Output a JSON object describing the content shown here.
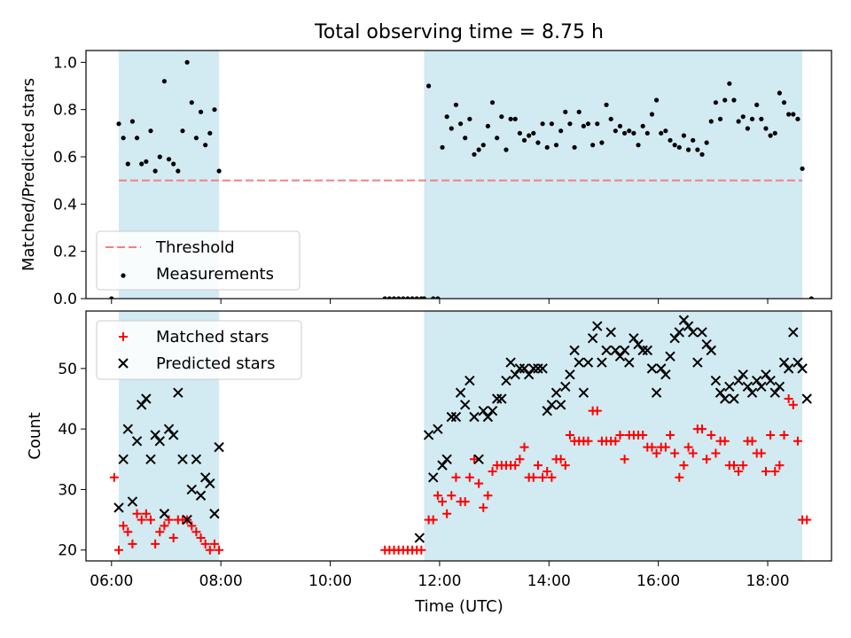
{
  "figure": {
    "title": "Total observing time = 8.75 h",
    "xlabel": "Time (UTC)"
  },
  "colors": {
    "shade": "#add8e6",
    "threshold": "#f08080",
    "measurement": "#000000",
    "matched": "#ff0000",
    "predicted": "#000000"
  },
  "chart_data": [
    {
      "type": "scatter",
      "ylabel": "Matched/Predicted stars",
      "xlim": [
        "05:32",
        "19:10"
      ],
      "ylim": [
        0,
        1.05
      ],
      "x_ticks": [
        "06:00",
        "08:00",
        "10:00",
        "12:00",
        "14:00",
        "16:00",
        "18:00"
      ],
      "y_ticks": [
        "0.0",
        "0.2",
        "0.4",
        "0.6",
        "0.8",
        "1.0"
      ],
      "shaded_intervals": [
        [
          "06:08",
          "07:58"
        ],
        [
          "11:43",
          "18:38"
        ]
      ],
      "threshold": {
        "name": "Threshold",
        "y": 0.5,
        "x_range": [
          "06:08",
          "18:38"
        ]
      },
      "legend_placement": "lower-left",
      "legend": [
        "Threshold",
        "Measurements"
      ],
      "series": [
        {
          "name": "Measurements",
          "x": [
            "06:00",
            "06:08",
            "06:13",
            "06:18",
            "06:23",
            "06:28",
            "06:33",
            "06:38",
            "06:43",
            "06:48",
            "06:53",
            "06:58",
            "07:03",
            "07:08",
            "07:13",
            "07:18",
            "07:23",
            "07:28",
            "07:33",
            "07:38",
            "07:43",
            "07:48",
            "07:53",
            "07:58",
            "11:00",
            "11:05",
            "11:10",
            "11:15",
            "11:20",
            "11:25",
            "11:30",
            "11:35",
            "11:40",
            "11:43",
            "11:48",
            "11:53",
            "11:58",
            "12:03",
            "12:08",
            "12:13",
            "12:18",
            "12:23",
            "12:28",
            "12:33",
            "12:38",
            "12:43",
            "12:48",
            "12:53",
            "12:58",
            "13:03",
            "13:08",
            "13:13",
            "13:18",
            "13:23",
            "13:28",
            "13:33",
            "13:38",
            "13:43",
            "13:48",
            "13:53",
            "13:58",
            "14:03",
            "14:08",
            "14:13",
            "14:18",
            "14:23",
            "14:28",
            "14:33",
            "14:38",
            "14:43",
            "14:48",
            "14:53",
            "14:58",
            "15:03",
            "15:08",
            "15:13",
            "15:18",
            "15:23",
            "15:28",
            "15:33",
            "15:38",
            "15:43",
            "15:48",
            "15:53",
            "15:58",
            "16:03",
            "16:08",
            "16:13",
            "16:18",
            "16:23",
            "16:28",
            "16:33",
            "16:38",
            "16:43",
            "16:48",
            "16:53",
            "16:58",
            "17:03",
            "17:08",
            "17:13",
            "17:18",
            "17:23",
            "17:28",
            "17:33",
            "17:38",
            "17:43",
            "17:48",
            "17:53",
            "17:58",
            "18:03",
            "18:08",
            "18:13",
            "18:18",
            "18:23",
            "18:28",
            "18:33",
            "18:38",
            "18:48"
          ],
          "y": [
            0.0,
            0.74,
            0.68,
            0.57,
            0.75,
            0.68,
            0.57,
            0.58,
            0.71,
            0.54,
            0.6,
            0.92,
            0.59,
            0.57,
            0.54,
            0.71,
            1.0,
            0.83,
            0.68,
            0.79,
            0.65,
            0.7,
            0.8,
            0.54,
            0.0,
            0.0,
            0.0,
            0.0,
            0.0,
            0.0,
            0.0,
            0.0,
            0.0,
            0.0,
            0.9,
            0.0,
            0.0,
            0.64,
            0.77,
            0.72,
            0.82,
            0.74,
            0.68,
            0.76,
            0.61,
            0.63,
            0.65,
            0.73,
            0.83,
            0.68,
            0.77,
            0.63,
            0.76,
            0.76,
            0.7,
            0.67,
            0.69,
            0.7,
            0.66,
            0.74,
            0.64,
            0.74,
            0.65,
            0.71,
            0.79,
            0.74,
            0.64,
            0.79,
            0.73,
            0.74,
            0.65,
            0.74,
            0.66,
            0.82,
            0.76,
            0.71,
            0.73,
            0.7,
            0.71,
            0.7,
            0.65,
            0.73,
            0.7,
            0.78,
            0.84,
            0.7,
            0.71,
            0.67,
            0.65,
            0.64,
            0.69,
            0.63,
            0.67,
            0.63,
            0.61,
            0.66,
            0.75,
            0.83,
            0.76,
            0.84,
            0.91,
            0.84,
            0.75,
            0.77,
            0.72,
            0.76,
            0.82,
            0.76,
            0.72,
            0.69,
            0.7,
            0.87,
            0.83,
            0.78,
            0.78,
            0.76,
            0.55,
            0.0
          ]
        }
      ]
    },
    {
      "type": "scatter",
      "ylabel": "Count",
      "xlim": [
        "05:32",
        "19:10"
      ],
      "ylim": [
        18.2,
        59.5
      ],
      "x_ticks": [
        "06:00",
        "08:00",
        "10:00",
        "12:00",
        "14:00",
        "16:00",
        "18:00"
      ],
      "y_ticks": [
        "20",
        "30",
        "40",
        "50"
      ],
      "shaded_intervals": [
        [
          "06:08",
          "07:58"
        ],
        [
          "11:43",
          "18:38"
        ]
      ],
      "legend_placement": "upper-left",
      "legend": [
        "Matched stars",
        "Predicted stars"
      ],
      "series": [
        {
          "name": "Matched stars",
          "x": [
            "06:03",
            "06:08",
            "06:13",
            "06:18",
            "06:23",
            "06:28",
            "06:33",
            "06:38",
            "06:43",
            "06:48",
            "06:53",
            "06:58",
            "07:03",
            "07:08",
            "07:13",
            "07:18",
            "07:23",
            "07:28",
            "07:33",
            "07:38",
            "07:43",
            "07:48",
            "07:53",
            "07:58",
            "11:00",
            "11:05",
            "11:10",
            "11:15",
            "11:20",
            "11:25",
            "11:30",
            "11:35",
            "11:40",
            "11:48",
            "11:53",
            "11:58",
            "12:03",
            "12:08",
            "12:13",
            "12:18",
            "12:23",
            "12:28",
            "12:33",
            "12:38",
            "12:43",
            "12:48",
            "12:53",
            "12:58",
            "13:03",
            "13:08",
            "13:13",
            "13:18",
            "13:23",
            "13:28",
            "13:33",
            "13:38",
            "13:43",
            "13:48",
            "13:53",
            "13:58",
            "14:03",
            "14:08",
            "14:13",
            "14:18",
            "14:23",
            "14:28",
            "14:33",
            "14:38",
            "14:43",
            "14:48",
            "14:53",
            "14:58",
            "15:03",
            "15:08",
            "15:13",
            "15:18",
            "15:23",
            "15:28",
            "15:33",
            "15:38",
            "15:43",
            "15:48",
            "15:53",
            "15:58",
            "16:03",
            "16:08",
            "16:13",
            "16:18",
            "16:23",
            "16:28",
            "16:33",
            "16:38",
            "16:43",
            "16:48",
            "16:53",
            "16:58",
            "17:03",
            "17:08",
            "17:13",
            "17:18",
            "17:23",
            "17:28",
            "17:33",
            "17:38",
            "17:43",
            "17:48",
            "17:53",
            "17:58",
            "18:03",
            "18:08",
            "18:13",
            "18:18",
            "18:23",
            "18:28",
            "18:33",
            "18:38",
            "18:43"
          ],
          "y": [
            32,
            20,
            24,
            23,
            21,
            26,
            25,
            26,
            25,
            21,
            23,
            24,
            25,
            22,
            25,
            25,
            25,
            24,
            23,
            22,
            21,
            20,
            21,
            20,
            20,
            20,
            20,
            20,
            20,
            20,
            20,
            20,
            20,
            25,
            25,
            29,
            28,
            26,
            29,
            32,
            28,
            28,
            32,
            35,
            31,
            27,
            29,
            33,
            34,
            34,
            34,
            34,
            34,
            35,
            37,
            32,
            32,
            34,
            32,
            33,
            32,
            35,
            35,
            34,
            39,
            38,
            38,
            38,
            38,
            43,
            43,
            38,
            38,
            38,
            38,
            39,
            35,
            39,
            39,
            39,
            39,
            37,
            37,
            36,
            37,
            37,
            39,
            36,
            32,
            34,
            37,
            36,
            40,
            40,
            35,
            39,
            36,
            38,
            38,
            34,
            34,
            33,
            34,
            38,
            38,
            36,
            36,
            33,
            39,
            33,
            34,
            39,
            45,
            44,
            38,
            25,
            25
          ]
        },
        {
          "name": "Predicted stars",
          "x": [
            "06:08",
            "06:13",
            "06:18",
            "06:23",
            "06:28",
            "06:33",
            "06:38",
            "06:43",
            "06:48",
            "06:53",
            "06:58",
            "07:03",
            "07:08",
            "07:13",
            "07:18",
            "07:23",
            "07:28",
            "07:33",
            "07:38",
            "07:43",
            "07:48",
            "07:53",
            "07:58",
            "11:38",
            "11:48",
            "11:53",
            "11:58",
            "12:03",
            "12:08",
            "12:13",
            "12:18",
            "12:23",
            "12:28",
            "12:33",
            "12:38",
            "12:43",
            "12:48",
            "12:53",
            "12:58",
            "13:03",
            "13:08",
            "13:13",
            "13:18",
            "13:23",
            "13:28",
            "13:33",
            "13:38",
            "13:43",
            "13:48",
            "13:53",
            "13:58",
            "14:03",
            "14:08",
            "14:13",
            "14:18",
            "14:23",
            "14:28",
            "14:33",
            "14:38",
            "14:43",
            "14:48",
            "14:53",
            "14:58",
            "15:03",
            "15:08",
            "15:13",
            "15:18",
            "15:23",
            "15:28",
            "15:33",
            "15:38",
            "15:43",
            "15:48",
            "15:53",
            "15:58",
            "16:03",
            "16:08",
            "16:13",
            "16:18",
            "16:23",
            "16:28",
            "16:33",
            "16:38",
            "16:43",
            "16:48",
            "16:53",
            "16:58",
            "17:03",
            "17:08",
            "17:13",
            "17:18",
            "17:23",
            "17:28",
            "17:33",
            "17:38",
            "17:43",
            "17:48",
            "17:53",
            "17:58",
            "18:03",
            "18:08",
            "18:13",
            "18:18",
            "18:23",
            "18:28",
            "18:33",
            "18:38",
            "18:43"
          ],
          "y": [
            27,
            35,
            40,
            28,
            38,
            44,
            45,
            35,
            39,
            38,
            26,
            40,
            39,
            46,
            35,
            25,
            30,
            35,
            29,
            32,
            31,
            26,
            37,
            22,
            39,
            32,
            40,
            34,
            35,
            42,
            42,
            46,
            44,
            48,
            42,
            35,
            43,
            42,
            43,
            45,
            45,
            48,
            51,
            49,
            50,
            50,
            49,
            50,
            50,
            50,
            43,
            44,
            46,
            44,
            47,
            49,
            53,
            51,
            46,
            51,
            55,
            57,
            51,
            53,
            56,
            53,
            52,
            53,
            51,
            55,
            54,
            53,
            53,
            50,
            46,
            50,
            49,
            52,
            55,
            56,
            58,
            57,
            56,
            51,
            56,
            54,
            53,
            48,
            46,
            45,
            47,
            45,
            48,
            49,
            47,
            46,
            48,
            47,
            49,
            48,
            46,
            47,
            51,
            50,
            56,
            51,
            50,
            45
          ]
        }
      ]
    }
  ]
}
